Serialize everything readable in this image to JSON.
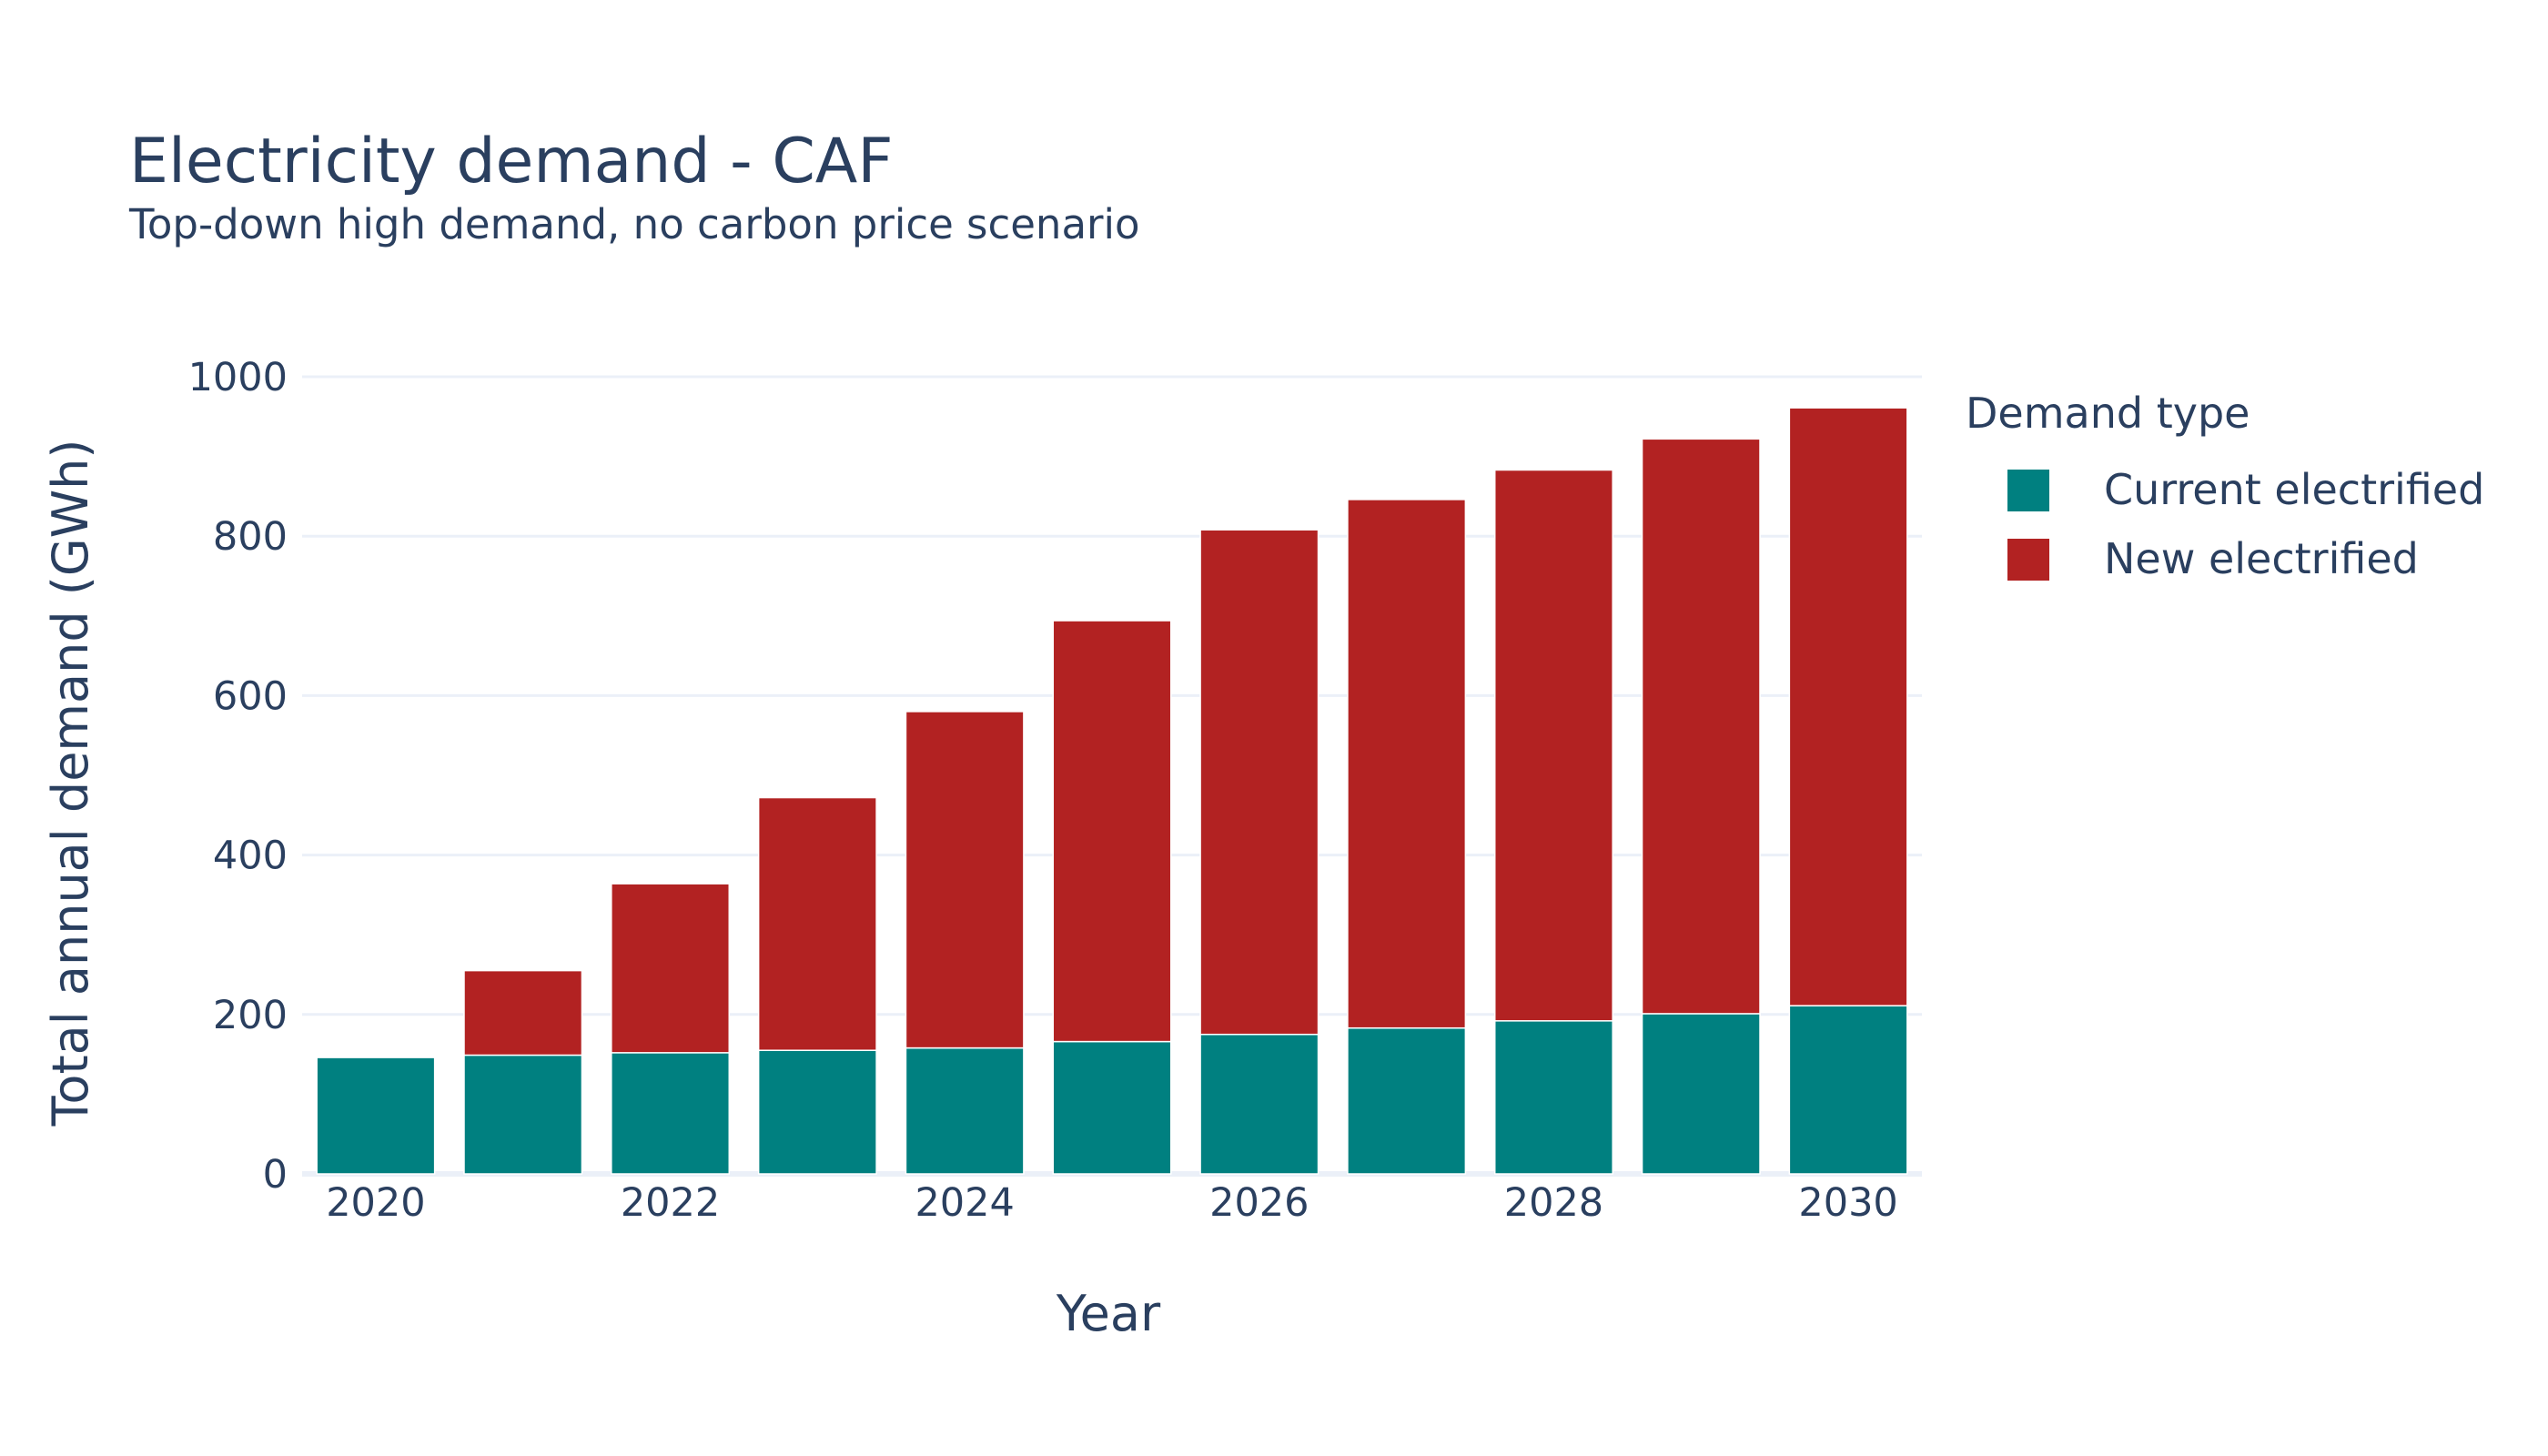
{
  "chart_data": {
    "type": "bar",
    "barmode": "stack",
    "title": "Electricity demand - CAF",
    "subtitle": "Top-down high demand, no carbon price scenario",
    "xlabel": "Year",
    "ylabel": "Total annual demand (GWh)",
    "ylim": [
      0,
      1000
    ],
    "yticks": [
      0,
      200,
      400,
      600,
      800,
      1000
    ],
    "xticks": [
      2020,
      2022,
      2024,
      2026,
      2028,
      2030
    ],
    "x": [
      2020,
      2021,
      2022,
      2023,
      2024,
      2025,
      2026,
      2027,
      2028,
      2029,
      2030
    ],
    "grid": true,
    "legend": {
      "title": "Demand type",
      "position": "right"
    },
    "series": [
      {
        "name": "Current electrified",
        "color": "#008080",
        "values": [
          146,
          149,
          152,
          155,
          158,
          166,
          175,
          183,
          192,
          201,
          211
        ]
      },
      {
        "name": "New electrified",
        "color": "#b22222",
        "values": [
          0,
          106,
          212,
          317,
          422,
          528,
          633,
          663,
          691,
          721,
          750
        ]
      }
    ]
  }
}
